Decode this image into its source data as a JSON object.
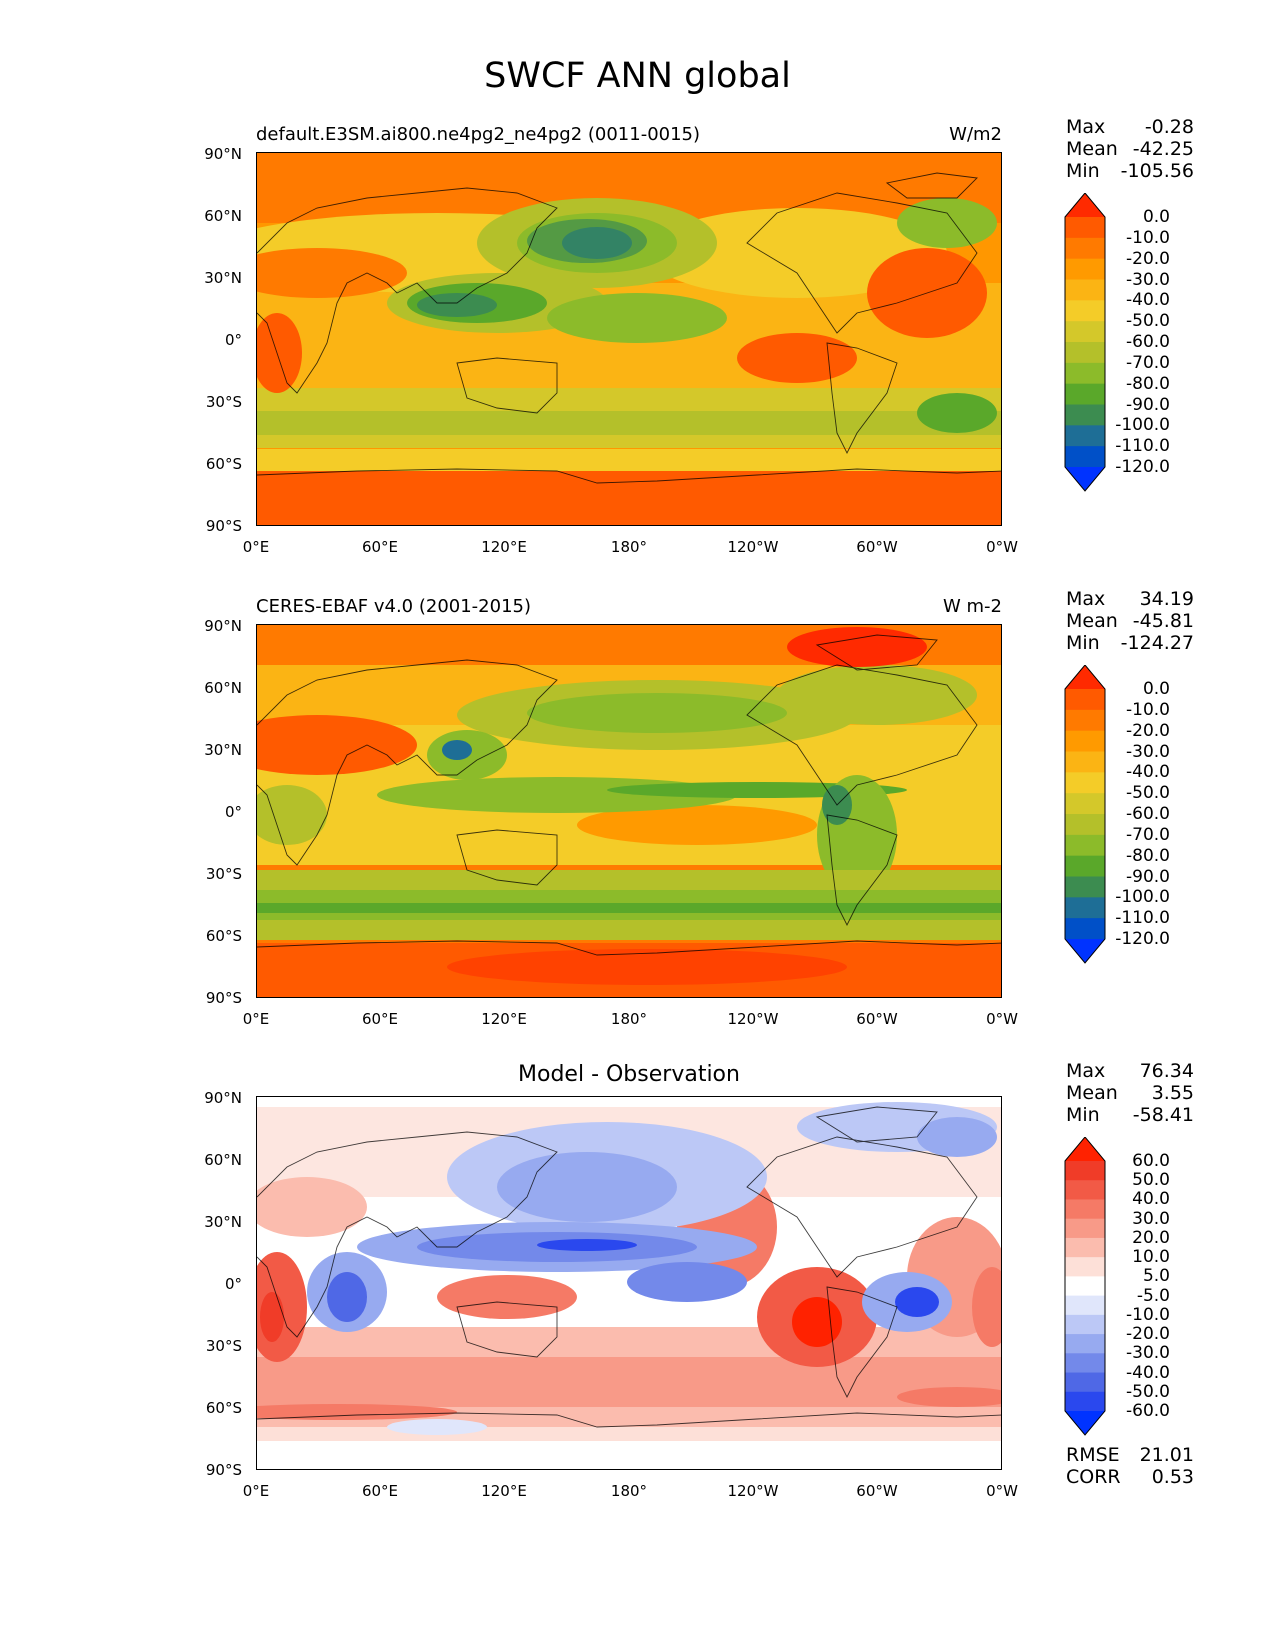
{
  "figure_title": "SWCF ANN global",
  "x_ticks": [
    "0°E",
    "60°E",
    "120°E",
    "180°",
    "120°W",
    "60°W",
    "0°W"
  ],
  "y_ticks": [
    "90°N",
    "60°N",
    "30°N",
    "0°",
    "30°S",
    "60°S",
    "90°S"
  ],
  "panels": [
    {
      "left_title": "default.E3SM.ai800.ne4pg2_ne4pg2 (0011-0015)",
      "right_title": "W/m2",
      "center_title": "",
      "stats": [
        {
          "label": "Max",
          "value": "-0.28"
        },
        {
          "label": "Mean",
          "value": "-42.25"
        },
        {
          "label": "Min",
          "value": "-105.56"
        }
      ],
      "colorbar_labels": [
        "0.0",
        "-10.0",
        "-20.0",
        "-30.0",
        "-40.0",
        "-50.0",
        "-60.0",
        "-70.0",
        "-80.0",
        "-90.0",
        "-100.0",
        "-110.0",
        "-120.0"
      ],
      "colorbar_colors": [
        "#ff2a00",
        "#ff5a00",
        "#ff7a00",
        "#ff9a00",
        "#fbb414",
        "#f4cc28",
        "#d4c82a",
        "#b4c02a",
        "#8cbb2a",
        "#5aa82a",
        "#3c8c50",
        "#1e6e96",
        "#0050c8",
        "#0033ff"
      ],
      "extra_stats": []
    },
    {
      "left_title": "CERES-EBAF v4.0 (2001-2015)",
      "right_title": "W m-2",
      "center_title": "",
      "stats": [
        {
          "label": "Max",
          "value": "34.19"
        },
        {
          "label": "Mean",
          "value": "-45.81"
        },
        {
          "label": "Min",
          "value": "-124.27"
        }
      ],
      "colorbar_labels": [
        "0.0",
        "-10.0",
        "-20.0",
        "-30.0",
        "-40.0",
        "-50.0",
        "-60.0",
        "-70.0",
        "-80.0",
        "-90.0",
        "-100.0",
        "-110.0",
        "-120.0"
      ],
      "colorbar_colors": [
        "#ff2a00",
        "#ff5a00",
        "#ff7a00",
        "#ff9a00",
        "#fbb414",
        "#f4cc28",
        "#d4c82a",
        "#b4c02a",
        "#8cbb2a",
        "#5aa82a",
        "#3c8c50",
        "#1e6e96",
        "#0050c8",
        "#0033ff"
      ],
      "extra_stats": []
    },
    {
      "left_title": "",
      "right_title": "",
      "center_title": "Model - Observation",
      "stats": [
        {
          "label": "Max",
          "value": "76.34"
        },
        {
          "label": "Mean",
          "value": "3.55"
        },
        {
          "label": "Min",
          "value": "-58.41"
        }
      ],
      "colorbar_labels": [
        "60.0",
        "50.0",
        "40.0",
        "30.0",
        "20.0",
        "10.0",
        "5.0",
        "-5.0",
        "-10.0",
        "-20.0",
        "-30.0",
        "-40.0",
        "-50.0",
        "-60.0"
      ],
      "colorbar_colors": [
        "#ff2200",
        "#f03c28",
        "#f25a46",
        "#f57a66",
        "#f89a88",
        "#fbbcae",
        "#fde0d8",
        "#ffffff",
        "#e0e6fb",
        "#bcc8f6",
        "#97aaf0",
        "#7389ea",
        "#4f68e6",
        "#2a48ee",
        "#0033ff"
      ],
      "extra_stats": [
        {
          "label": "RMSE",
          "value": "21.01"
        },
        {
          "label": "CORR",
          "value": "0.53"
        }
      ]
    }
  ]
}
